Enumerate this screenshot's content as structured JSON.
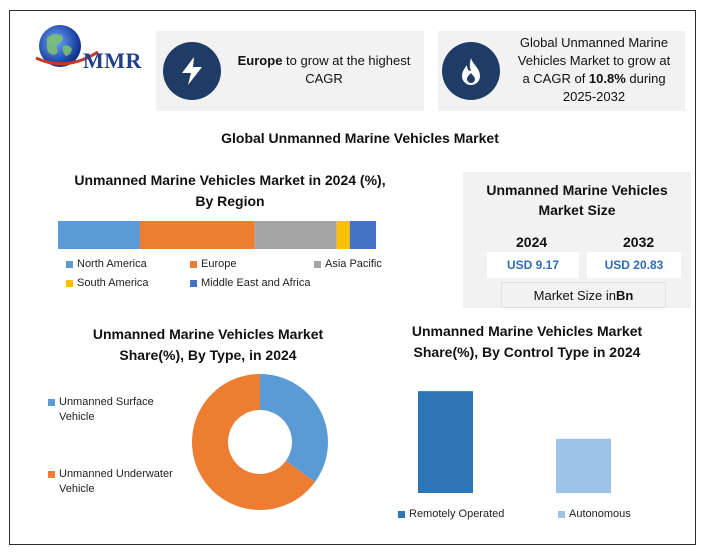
{
  "logo": {
    "text": "MMR"
  },
  "card_europe": {
    "icon": "lightning-icon",
    "bold": "Europe",
    "line1_rest": " to grow at the highest",
    "line2": "CAGR"
  },
  "card_cagr": {
    "icon": "flame-icon",
    "line1": "Global Unmanned Marine",
    "line2": "Vehicles Market to grow at",
    "line3_pre": "a CAGR of ",
    "line3_bold": "10.8%",
    "line3_post": " during",
    "line4": "2025-2032"
  },
  "main_title": "Global Unmanned Marine Vehicles Market",
  "colors": {
    "north_america": "#5b9bd5",
    "europe": "#ed7d31",
    "asia_pacific": "#a5a5a5",
    "south_america": "#ffc000",
    "mea": "#4472c4",
    "dark_blue": "#2e75b6",
    "light_blue": "#9dc3e6",
    "icon_bg": "#1f3c66"
  },
  "market_size": {
    "title_line1": "Unmanned Marine Vehicles",
    "title_line2": "Market Size",
    "year1": "2024",
    "year2": "2032",
    "value1": "USD 9.17",
    "value2": "USD 20.83",
    "footer_pre": "Market Size in ",
    "footer_bold": "Bn"
  },
  "chart_data": [
    {
      "type": "bar",
      "orientation": "horizontal-stacked",
      "title_line1": "Unmanned Marine Vehicles Market in 2024 (%),",
      "title_line2": "By Region",
      "series": [
        {
          "name": "North America",
          "values": [
            25
          ]
        },
        {
          "name": "Europe",
          "values": [
            35
          ]
        },
        {
          "name": "Asia Pacific",
          "values": [
            25
          ]
        },
        {
          "name": "South America",
          "values": [
            4
          ]
        },
        {
          "name": "Middle East and Africa",
          "values": [
            8
          ]
        }
      ],
      "legend": "bottom"
    },
    {
      "type": "pie",
      "style": "donut",
      "title_line1": "Unmanned Marine Vehicles Market",
      "title_line2": "Share(%), By Type, in 2024",
      "categories": [
        "Unmanned Surface Vehicle",
        "Unmanned Underwater Vehicle"
      ],
      "values": [
        35,
        65
      ],
      "legend_labels": [
        [
          "Unmanned Surface",
          "Vehicle"
        ],
        [
          "Unmanned Underwater",
          "Vehicle"
        ]
      ],
      "legend": "left"
    },
    {
      "type": "bar",
      "title_line1": "Unmanned Marine Vehicles Market",
      "title_line2": "Share(%), By Control Type in 2024",
      "categories": [
        "Remotely Operated",
        "Autonomous"
      ],
      "values": [
        62,
        33
      ],
      "ylim": [
        0,
        70
      ],
      "legend": "bottom"
    }
  ]
}
